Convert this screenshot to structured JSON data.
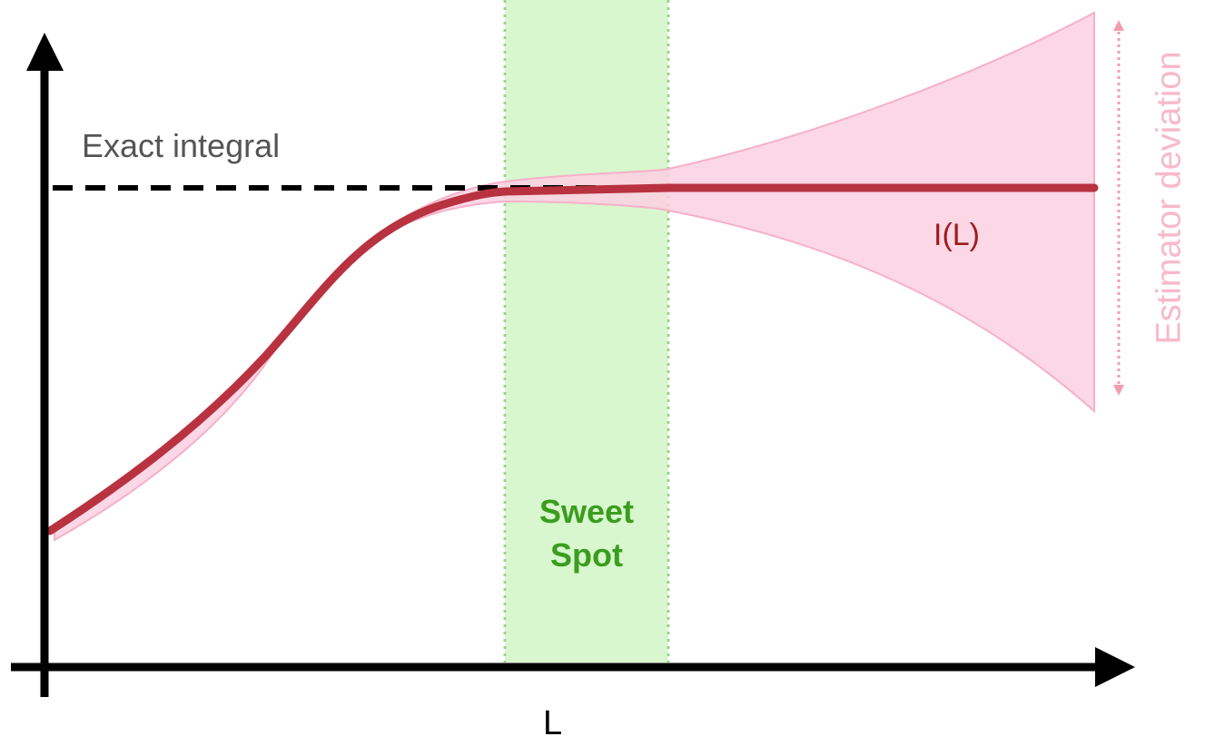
{
  "labels": {
    "exact_integral": "Exact integral",
    "curve": "I(L)",
    "x_axis": "L",
    "sweet_spot": "Sweet Spot",
    "deviation": "Estimator deviation"
  },
  "colors": {
    "axis": "#000000",
    "curve": "#b83240",
    "band": "#fbd0e2",
    "band_edge": "#f6b0c9",
    "sweet_spot_fill": "#d9f7cf",
    "sweet_spot_border": "#9fd08f",
    "sweet_spot_text": "#3a9d1e",
    "deviation_arrow": "#f59bb0",
    "exact_text": "#555555",
    "curve_text": "#9e1b1b"
  }
}
